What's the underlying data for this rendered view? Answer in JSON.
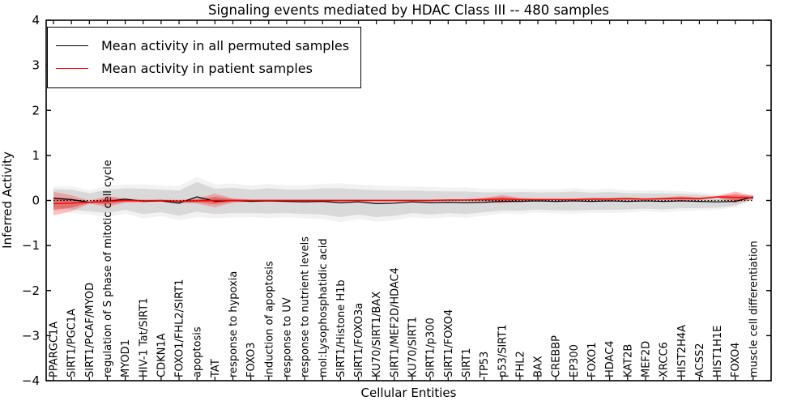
{
  "chart_data": {
    "type": "line",
    "title": "Signaling events mediated by HDAC Class III -- 480 samples",
    "xlabel": "Cellular Entities",
    "ylabel": "Inferred Activity",
    "ylim": [
      -4,
      4
    ],
    "yticks": [
      -4,
      -3,
      -2,
      -1,
      0,
      1,
      2,
      3,
      4
    ],
    "grid": false,
    "legend_position": "upper left",
    "zero_line": {
      "y": 0,
      "style": "dotted",
      "color": "#000000"
    },
    "categories": [
      "PPARGC1A",
      "SIRT1/PGC1A",
      "SIRT1/PCAF/MYOD",
      "regulation of S phase of mitotic cell cycle",
      "MYOD1",
      "HIV-1 Tat/SIRT1",
      "CDKN1A",
      "FOXO1/FHL2/SIRT1",
      "apoptosis",
      "TAT",
      "response to hypoxia",
      "FOXO3",
      "induction of apoptosis",
      "response to UV",
      "response to nutrient levels",
      "mol:Lysophosphatidic acid",
      "SIRT1/Histone H1b",
      "SIRT1/FOXO3a",
      "KU70/SIRT1/BAX",
      "SIRT1/MEF2D/HDAC4",
      "KU70/SIRT1",
      "SIRT1/p300",
      "SIRT1/FOXO4",
      "SIRT1",
      "TP53",
      "p53/SIRT1",
      "FHL2",
      "BAX",
      "CREBBP",
      "EP300",
      "FOXO1",
      "HDAC4",
      "KAT2B",
      "MEF2D",
      "XRCC6",
      "HIST2H4A",
      "ACSS2",
      "HIST1H1E",
      "FOXO4",
      "muscle cell differentiation"
    ],
    "series": [
      {
        "name": "Mean activity in all permuted samples",
        "color": "#000000",
        "band_color": "#999999",
        "values": [
          0.05,
          0.02,
          -0.04,
          -0.02,
          0.03,
          -0.02,
          -0.01,
          -0.06,
          0.08,
          -0.02,
          0.0,
          -0.02,
          -0.01,
          -0.02,
          -0.03,
          -0.02,
          -0.05,
          -0.03,
          -0.07,
          -0.06,
          -0.03,
          -0.05,
          -0.04,
          -0.05,
          -0.04,
          -0.02,
          -0.02,
          -0.01,
          -0.02,
          -0.01,
          -0.02,
          -0.01,
          -0.02,
          -0.01,
          -0.02,
          -0.01,
          -0.02,
          -0.03,
          -0.02,
          0.08
        ],
        "band_halfwidth": [
          0.2,
          0.22,
          0.2,
          0.26,
          0.24,
          0.28,
          0.25,
          0.28,
          0.33,
          0.28,
          0.28,
          0.26,
          0.28,
          0.26,
          0.27,
          0.29,
          0.32,
          0.28,
          0.3,
          0.28,
          0.25,
          0.26,
          0.24,
          0.25,
          0.22,
          0.2,
          0.21,
          0.19,
          0.2,
          0.21,
          0.19,
          0.2,
          0.18,
          0.17,
          0.18,
          0.16,
          0.15,
          0.13,
          0.1,
          0.05
        ]
      },
      {
        "name": "Mean activity in patient samples",
        "color": "#ff0000",
        "band_color": "#ff3333",
        "values": [
          -0.07,
          -0.06,
          -0.04,
          -0.02,
          0.0,
          -0.01,
          0.0,
          -0.02,
          -0.01,
          0.0,
          0.0,
          0.0,
          0.0,
          0.0,
          0.0,
          0.0,
          0.0,
          0.0,
          0.0,
          0.0,
          0.0,
          0.0,
          0.01,
          0.01,
          0.02,
          0.03,
          0.02,
          0.02,
          0.02,
          0.02,
          0.03,
          0.03,
          0.04,
          0.03,
          0.04,
          0.05,
          0.04,
          0.08,
          0.07,
          0.06
        ],
        "band_halfwidth": [
          0.26,
          0.18,
          0.03,
          0.12,
          0.05,
          0.03,
          0.02,
          0.03,
          0.06,
          0.15,
          0.05,
          0.02,
          0.02,
          0.02,
          0.02,
          0.02,
          0.02,
          0.02,
          0.02,
          0.02,
          0.02,
          0.02,
          0.02,
          0.02,
          0.04,
          0.09,
          0.04,
          0.02,
          0.02,
          0.02,
          0.03,
          0.03,
          0.03,
          0.02,
          0.03,
          0.05,
          0.03,
          0.02,
          0.13,
          0.04
        ]
      }
    ]
  }
}
